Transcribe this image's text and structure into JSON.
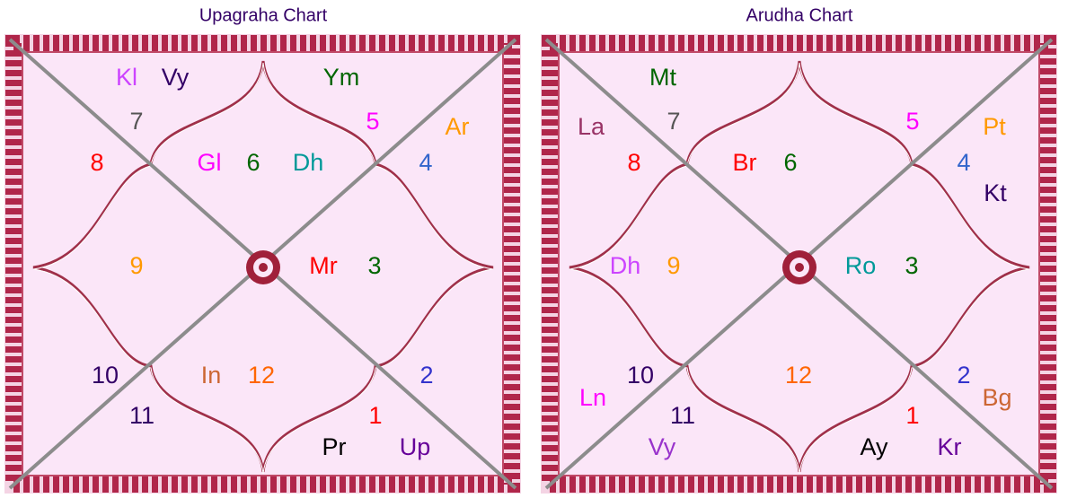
{
  "charts": [
    {
      "title": "Upagraha Chart",
      "labels": [
        "Kl",
        "Vy",
        "Ym",
        "7",
        "5",
        "Ar",
        "8",
        "Gl",
        "6",
        "Dh",
        "4",
        "9",
        "Mr",
        "3",
        "10",
        "In",
        "12",
        "2",
        "11",
        "1",
        "Pr",
        "Up"
      ]
    },
    {
      "title": "Arudha Chart",
      "labels": [
        "Mt",
        "La",
        "7",
        "5",
        "Pt",
        "8",
        "Br",
        "6",
        "4",
        "Kt",
        "Dh",
        "9",
        "Ro",
        "3",
        "10",
        "12",
        "2",
        "Bg",
        "Ln",
        "11",
        "1",
        "Vy",
        "Ay",
        "Kr"
      ]
    }
  ]
}
